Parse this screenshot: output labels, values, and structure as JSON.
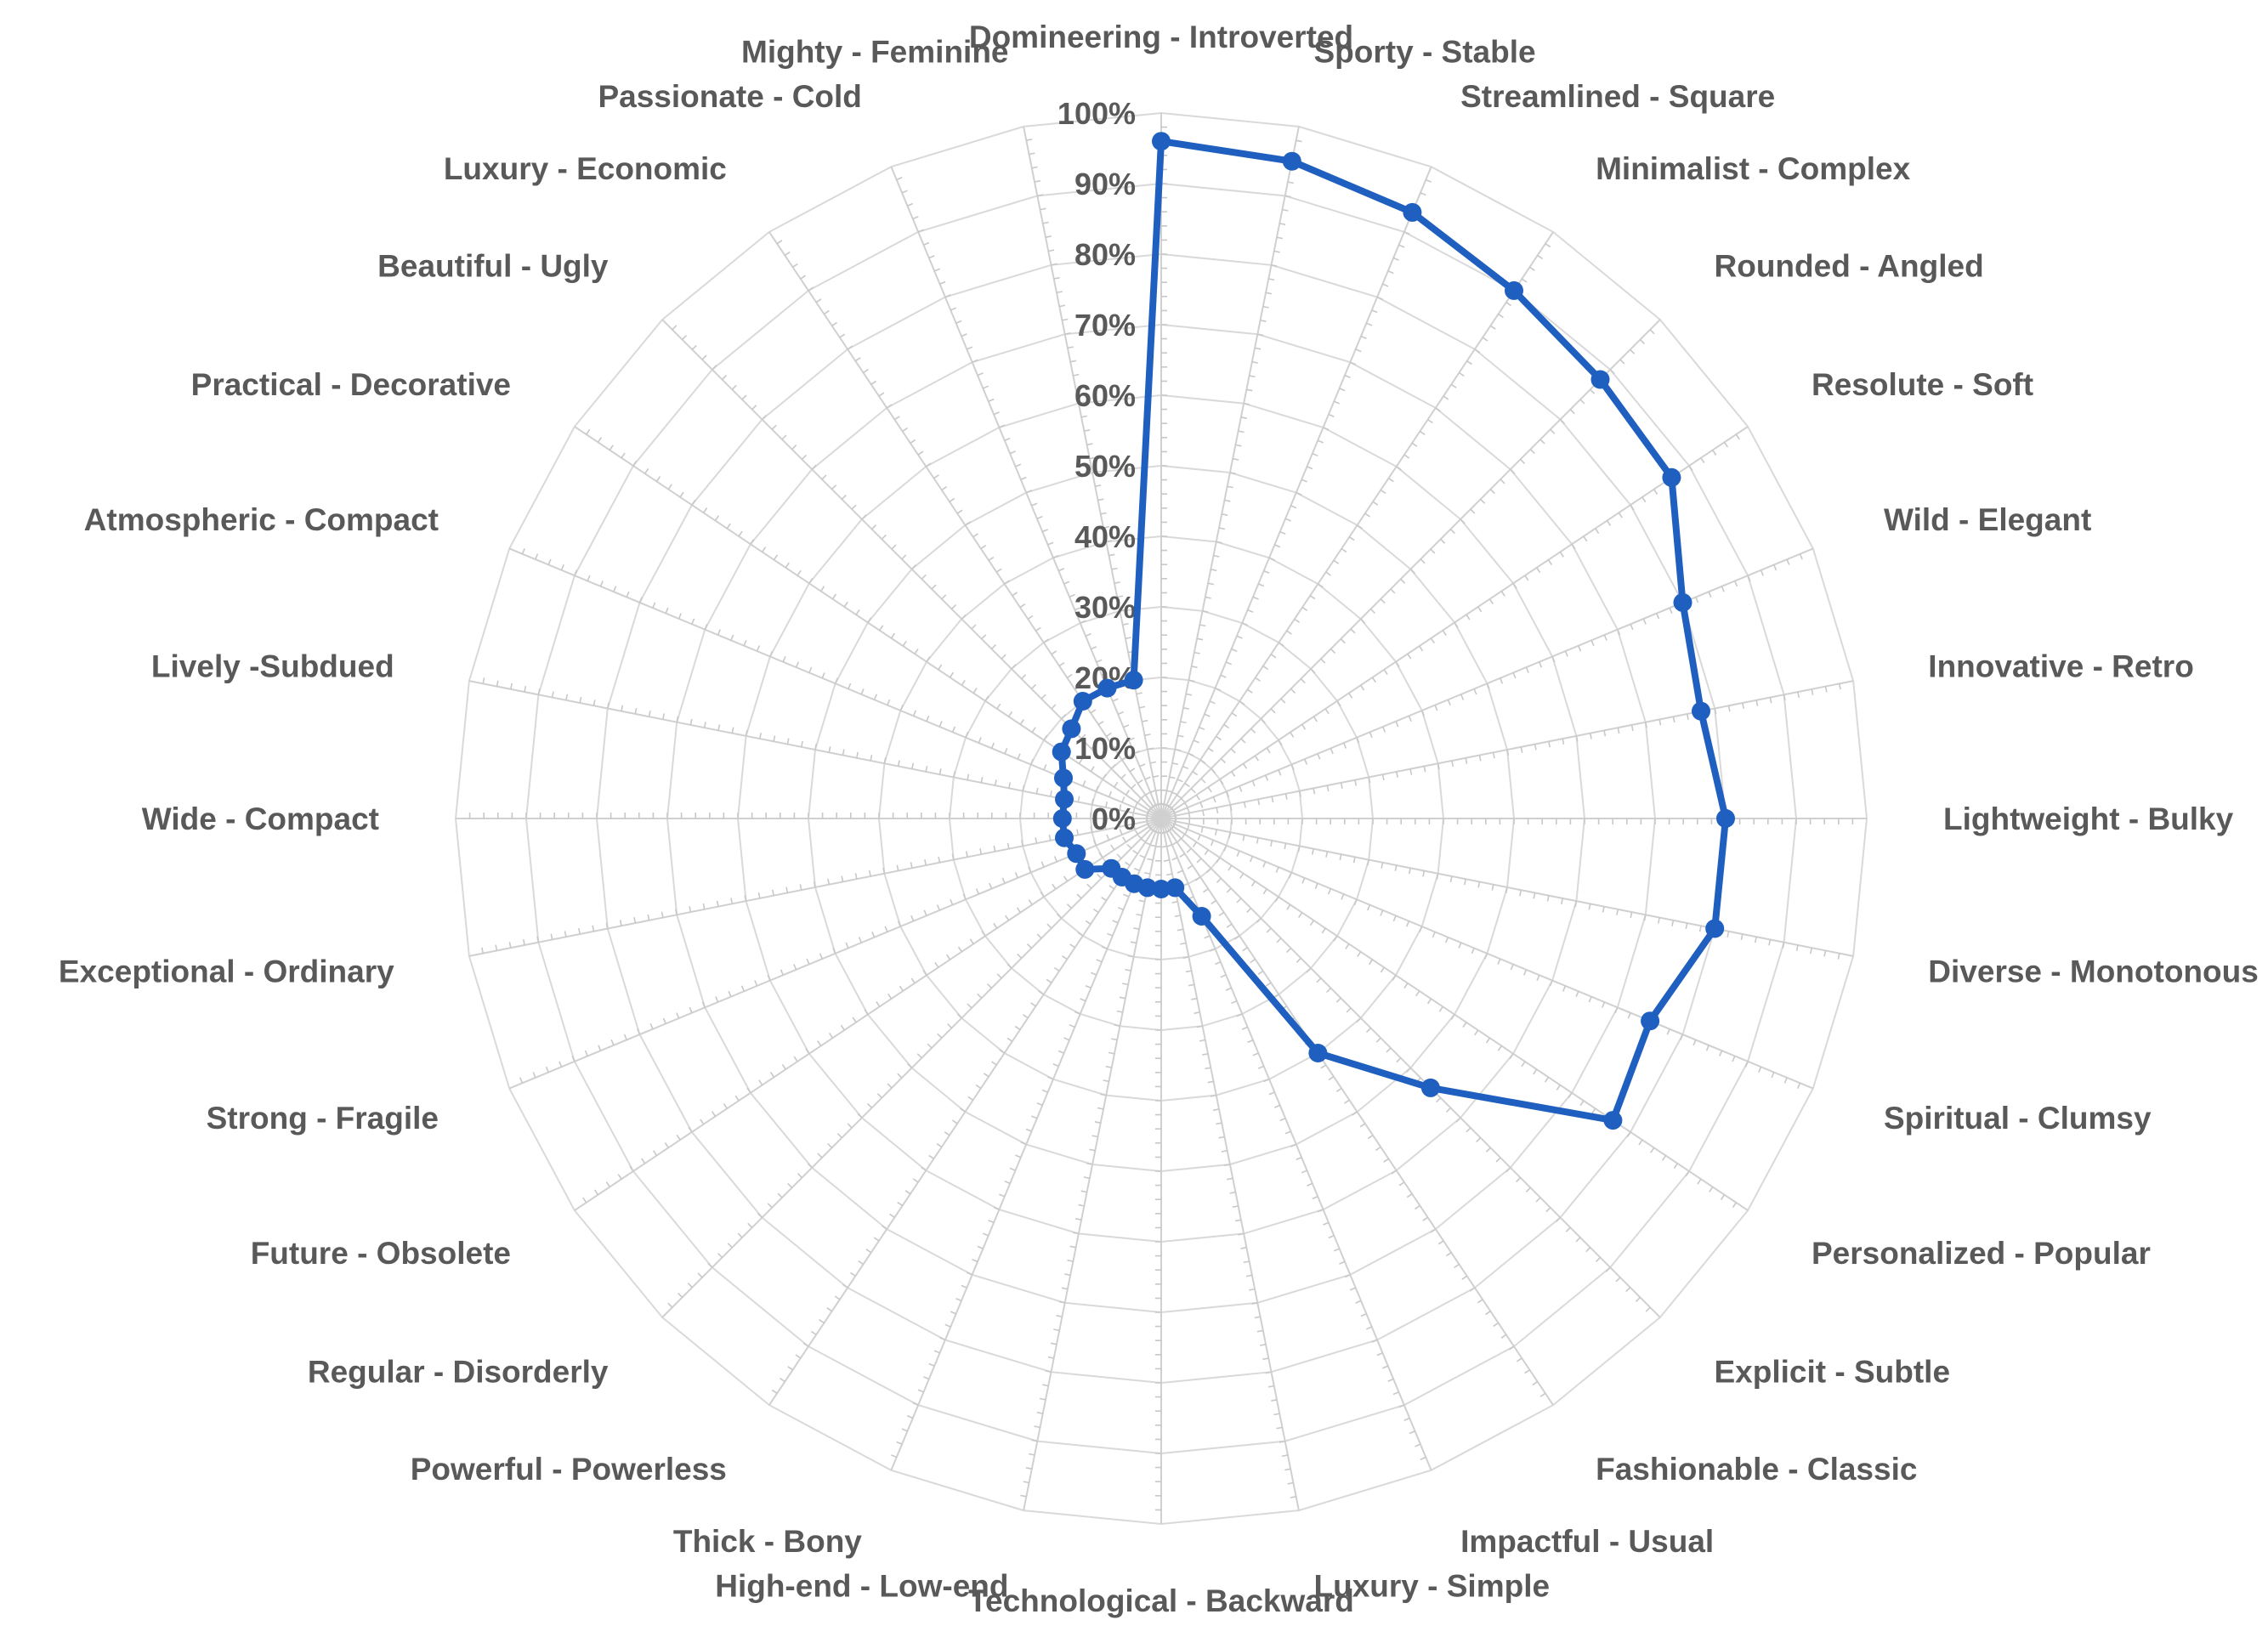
{
  "chart_data": {
    "type": "radar",
    "categories": [
      "Domineering - Introverted",
      "Sporty - Stable",
      "Streamlined - Square",
      "Minimalist - Complex",
      "Rounded - Angled",
      "Resolute - Soft",
      "Wild - Elegant",
      "Innovative - Retro",
      "Lightweight - Bulky",
      "Diverse - Monotonous",
      "Spiritual - Clumsy",
      "Personalized - Popular",
      "Explicit - Subtle",
      "Fashionable - Classic",
      "Impactful - Usual",
      "Luxury - Simple",
      "Technological - Backward",
      "High-end - Low-end",
      "Thick - Bony",
      "Powerful - Powerless",
      "Regular - Disorderly",
      "Future - Obsolete",
      "Strong - Fragile",
      "Exceptional - Ordinary",
      "Wide - Compact",
      "Lively  -Subdued",
      "Atmospheric - Compact",
      "Practical - Decorative",
      "Beautiful - Ugly",
      "Luxury - Economic",
      "Passionate - Cold",
      "Mighty - Feminine"
    ],
    "series": [
      {
        "values": [
          96,
          95,
          93,
          90,
          88,
          87,
          80,
          78,
          80,
          80,
          75,
          77,
          54,
          40,
          15,
          10,
          10,
          10,
          10,
          10,
          10,
          13,
          13,
          14,
          14,
          14,
          15,
          17,
          18,
          20,
          20,
          20
        ],
        "color": "#1f5fbf"
      }
    ],
    "tick_labels": [
      "0%",
      "10%",
      "20%",
      "30%",
      "40%",
      "50%",
      "60%",
      "70%",
      "80%",
      "90%",
      "100%"
    ],
    "rlim": [
      0,
      100
    ],
    "grid": true,
    "legend": "none"
  }
}
